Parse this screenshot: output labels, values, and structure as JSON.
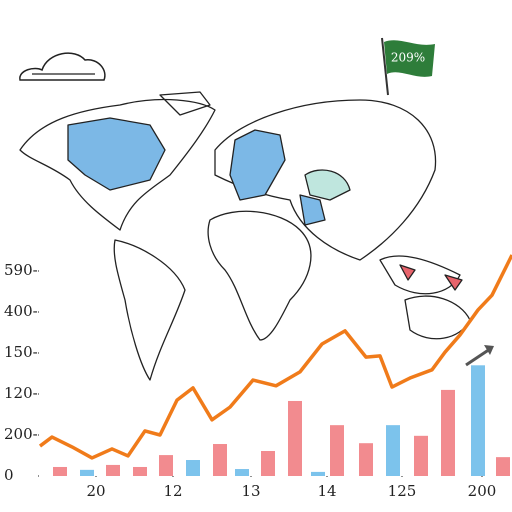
{
  "chart_data": {
    "type": "bar",
    "annotations": [
      "209%"
    ],
    "xlim": [
      0,
      472
    ],
    "xticks": [
      {
        "value": 56,
        "label": "20"
      },
      {
        "value": 133,
        "label": "12"
      },
      {
        "value": 211,
        "label": "13"
      },
      {
        "value": 287,
        "label": "14"
      },
      {
        "value": 362,
        "label": "125"
      },
      {
        "value": 442,
        "label": "200"
      }
    ],
    "ylim": [
      0,
      5
    ],
    "yticks": [
      0,
      {
        "value": 1,
        "label": "200-"
      },
      {
        "value": 2,
        "label": "120-"
      },
      {
        "value": 3,
        "label": "150-"
      },
      {
        "value": 4,
        "label": "400-"
      },
      {
        "value": 5,
        "label": "590-"
      }
    ],
    "series": [
      {
        "type": "bar",
        "color": "#f28b8f",
        "x": [
          20,
          73,
          100,
          126,
          180,
          228,
          255,
          297,
          326,
          381,
          408,
          463
        ],
        "values": [
          0.22,
          0.27,
          0.22,
          0.51,
          0.78,
          0.61,
          1.83,
          1.24,
          0.8,
          0.98,
          2.1,
          0.46
        ]
      },
      {
        "type": "bar",
        "color": "#7cc3ec",
        "x": [
          47,
          153,
          202,
          278,
          353,
          438
        ],
        "values": [
          0.15,
          0.39,
          0.17,
          0.1,
          1.24,
          2.7
        ]
      },
      {
        "type": "line",
        "color": "#f07b1a",
        "x": [
          0,
          12,
          32,
          52,
          72,
          88,
          105,
          120,
          137,
          153,
          172,
          190,
          213,
          236,
          260,
          282,
          305,
          326,
          340,
          352,
          370,
          392,
          405,
          420,
          438,
          452,
          472
        ],
        "values": [
          0.73,
          0.95,
          0.71,
          0.44,
          0.66,
          0.49,
          1.1,
          1.0,
          1.85,
          2.15,
          1.37,
          1.68,
          2.34,
          2.2,
          2.54,
          3.22,
          3.54,
          2.9,
          2.93,
          2.17,
          2.39,
          2.59,
          3.02,
          3.44,
          4.05,
          4.41,
          5.39
        ]
      }
    ]
  }
}
